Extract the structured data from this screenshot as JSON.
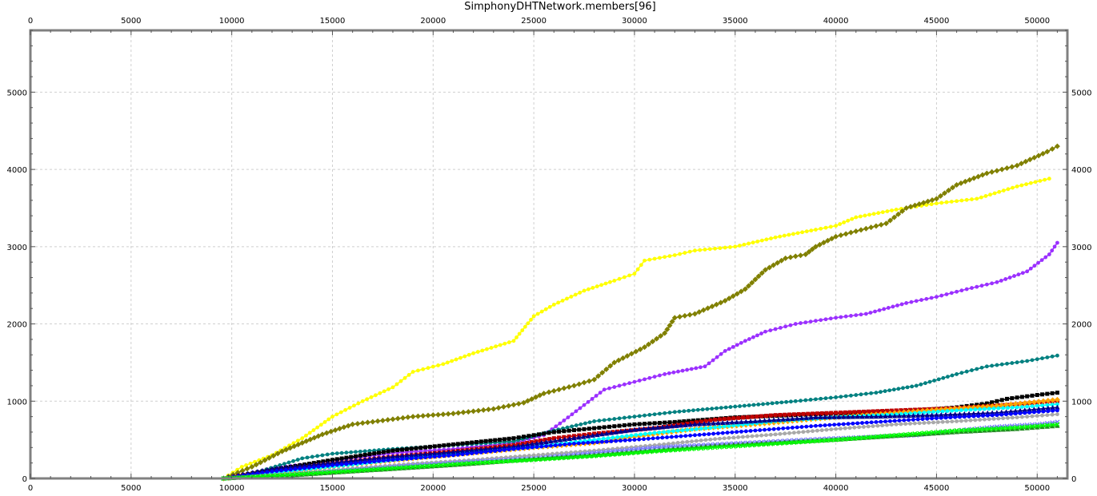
{
  "chart_data": {
    "type": "line",
    "title": "SimphonyDHTNetwork.members[96]",
    "xlabel": "",
    "ylabel": "",
    "xlim": [
      0,
      51500
    ],
    "ylim": [
      0,
      5800
    ],
    "xticks": [
      0,
      5000,
      10000,
      15000,
      20000,
      25000,
      30000,
      35000,
      40000,
      45000,
      50000
    ],
    "yticks": [
      0,
      1000,
      2000,
      3000,
      4000,
      5000
    ],
    "grid": true,
    "legend": "none",
    "series": [
      {
        "color": "#ffff00",
        "marker": "circle",
        "points": [
          [
            9600,
            0
          ],
          [
            10500,
            150
          ],
          [
            12000,
            300
          ],
          [
            13500,
            520
          ],
          [
            15000,
            800
          ],
          [
            16500,
            1000
          ],
          [
            18000,
            1180
          ],
          [
            19000,
            1380
          ],
          [
            20500,
            1480
          ],
          [
            22000,
            1620
          ],
          [
            24000,
            1780
          ],
          [
            25000,
            2100
          ],
          [
            26000,
            2250
          ],
          [
            27500,
            2430
          ],
          [
            29000,
            2560
          ],
          [
            30000,
            2650
          ],
          [
            30500,
            2820
          ],
          [
            32000,
            2890
          ],
          [
            33000,
            2950
          ],
          [
            35000,
            3000
          ],
          [
            37000,
            3120
          ],
          [
            39000,
            3220
          ],
          [
            40000,
            3270
          ],
          [
            41000,
            3380
          ],
          [
            43000,
            3480
          ],
          [
            45000,
            3560
          ],
          [
            47000,
            3620
          ],
          [
            49000,
            3780
          ],
          [
            50600,
            3880
          ]
        ]
      },
      {
        "color": "#808000",
        "marker": "diamond",
        "points": [
          [
            9600,
            0
          ],
          [
            11000,
            150
          ],
          [
            12500,
            350
          ],
          [
            13500,
            460
          ],
          [
            14500,
            570
          ],
          [
            16000,
            700
          ],
          [
            17500,
            750
          ],
          [
            19000,
            800
          ],
          [
            21000,
            840
          ],
          [
            23000,
            900
          ],
          [
            24500,
            980
          ],
          [
            25500,
            1100
          ],
          [
            27000,
            1200
          ],
          [
            28000,
            1280
          ],
          [
            29000,
            1500
          ],
          [
            30500,
            1700
          ],
          [
            31500,
            1880
          ],
          [
            32000,
            2080
          ],
          [
            33000,
            2130
          ],
          [
            34500,
            2300
          ],
          [
            35500,
            2450
          ],
          [
            36500,
            2700
          ],
          [
            37500,
            2850
          ],
          [
            38500,
            2900
          ],
          [
            39000,
            3000
          ],
          [
            40000,
            3130
          ],
          [
            41000,
            3200
          ],
          [
            42500,
            3300
          ],
          [
            43500,
            3500
          ],
          [
            45000,
            3620
          ],
          [
            46000,
            3800
          ],
          [
            47500,
            3950
          ],
          [
            49000,
            4050
          ],
          [
            50500,
            4230
          ],
          [
            51000,
            4300
          ]
        ]
      },
      {
        "color": "#9b30ff",
        "marker": "circle",
        "points": [
          [
            9600,
            0
          ],
          [
            12000,
            130
          ],
          [
            15000,
            230
          ],
          [
            18000,
            330
          ],
          [
            21000,
            380
          ],
          [
            24000,
            460
          ],
          [
            25500,
            560
          ],
          [
            26500,
            750
          ],
          [
            27500,
            950
          ],
          [
            28500,
            1150
          ],
          [
            30000,
            1250
          ],
          [
            31500,
            1350
          ],
          [
            33500,
            1450
          ],
          [
            34500,
            1650
          ],
          [
            35500,
            1780
          ],
          [
            36500,
            1900
          ],
          [
            38000,
            2000
          ],
          [
            40000,
            2080
          ],
          [
            41500,
            2130
          ],
          [
            43500,
            2270
          ],
          [
            45000,
            2350
          ],
          [
            46500,
            2450
          ],
          [
            48000,
            2540
          ],
          [
            49500,
            2680
          ],
          [
            50600,
            2900
          ],
          [
            51000,
            3050
          ]
        ]
      },
      {
        "color": "#008080",
        "marker": "circle",
        "points": [
          [
            9600,
            0
          ],
          [
            11500,
            100
          ],
          [
            13500,
            260
          ],
          [
            15000,
            320
          ],
          [
            18000,
            380
          ],
          [
            21000,
            430
          ],
          [
            24000,
            480
          ],
          [
            26000,
            620
          ],
          [
            28000,
            740
          ],
          [
            30000,
            800
          ],
          [
            32000,
            860
          ],
          [
            35000,
            930
          ],
          [
            38000,
            1000
          ],
          [
            40000,
            1050
          ],
          [
            42000,
            1110
          ],
          [
            44000,
            1200
          ],
          [
            46000,
            1350
          ],
          [
            47500,
            1450
          ],
          [
            49500,
            1520
          ],
          [
            51000,
            1590
          ]
        ]
      },
      {
        "color": "#000000",
        "marker": "square",
        "points": [
          [
            9600,
            0
          ],
          [
            12000,
            110
          ],
          [
            15000,
            240
          ],
          [
            18000,
            360
          ],
          [
            21000,
            440
          ],
          [
            24000,
            520
          ],
          [
            26000,
            600
          ],
          [
            28000,
            650
          ],
          [
            30000,
            700
          ],
          [
            32000,
            730
          ],
          [
            35000,
            790
          ],
          [
            38000,
            820
          ],
          [
            40000,
            840
          ],
          [
            42000,
            860
          ],
          [
            44000,
            880
          ],
          [
            46000,
            920
          ],
          [
            47500,
            970
          ],
          [
            48500,
            1030
          ],
          [
            50000,
            1080
          ],
          [
            51000,
            1110
          ]
        ]
      },
      {
        "color": "#c00000",
        "marker": "square",
        "points": [
          [
            9600,
            0
          ],
          [
            12000,
            100
          ],
          [
            15000,
            190
          ],
          [
            18000,
            280
          ],
          [
            21000,
            350
          ],
          [
            24000,
            430
          ],
          [
            26000,
            520
          ],
          [
            28000,
            580
          ],
          [
            31000,
            650
          ],
          [
            34000,
            760
          ],
          [
            37000,
            820
          ],
          [
            40000,
            850
          ],
          [
            43000,
            880
          ],
          [
            46000,
            910
          ],
          [
            49000,
            960
          ],
          [
            51000,
            1000
          ]
        ]
      },
      {
        "color": "#ffa500",
        "marker": "diamond",
        "points": [
          [
            9600,
            0
          ],
          [
            13000,
            90
          ],
          [
            16000,
            180
          ],
          [
            19000,
            260
          ],
          [
            22000,
            330
          ],
          [
            25000,
            400
          ],
          [
            28000,
            460
          ],
          [
            30000,
            540
          ],
          [
            33000,
            640
          ],
          [
            36000,
            700
          ],
          [
            39000,
            770
          ],
          [
            42000,
            830
          ],
          [
            45000,
            890
          ],
          [
            48000,
            940
          ],
          [
            51000,
            1020
          ]
        ]
      },
      {
        "color": "#00ffff",
        "marker": "circle",
        "points": [
          [
            9600,
            0
          ],
          [
            13000,
            100
          ],
          [
            16000,
            180
          ],
          [
            19000,
            270
          ],
          [
            22000,
            350
          ],
          [
            25000,
            410
          ],
          [
            28000,
            500
          ],
          [
            31000,
            590
          ],
          [
            34000,
            660
          ],
          [
            37000,
            740
          ],
          [
            40000,
            790
          ],
          [
            43000,
            830
          ],
          [
            46000,
            880
          ],
          [
            49000,
            920
          ],
          [
            51000,
            960
          ]
        ]
      },
      {
        "color": "#00008b",
        "marker": "triangle",
        "points": [
          [
            9600,
            0
          ],
          [
            12000,
            120
          ],
          [
            15000,
            200
          ],
          [
            18000,
            280
          ],
          [
            21000,
            340
          ],
          [
            24000,
            410
          ],
          [
            27000,
            520
          ],
          [
            30000,
            630
          ],
          [
            33000,
            700
          ],
          [
            36000,
            740
          ],
          [
            39000,
            790
          ],
          [
            42000,
            800
          ],
          [
            45000,
            820
          ],
          [
            48000,
            850
          ],
          [
            51000,
            920
          ]
        ]
      },
      {
        "color": "#0000ff",
        "marker": "circle",
        "points": [
          [
            9600,
            0
          ],
          [
            12000,
            90
          ],
          [
            15000,
            170
          ],
          [
            18000,
            240
          ],
          [
            21000,
            300
          ],
          [
            24000,
            380
          ],
          [
            27000,
            450
          ],
          [
            30000,
            500
          ],
          [
            33000,
            560
          ],
          [
            36000,
            620
          ],
          [
            39000,
            680
          ],
          [
            42000,
            730
          ],
          [
            45000,
            780
          ],
          [
            48000,
            820
          ],
          [
            51000,
            880
          ]
        ]
      },
      {
        "color": "#a9a9a9",
        "marker": "circle",
        "points": [
          [
            9600,
            0
          ],
          [
            13000,
            60
          ],
          [
            16000,
            130
          ],
          [
            19000,
            190
          ],
          [
            22000,
            240
          ],
          [
            25000,
            300
          ],
          [
            28000,
            360
          ],
          [
            31000,
            430
          ],
          [
            34000,
            510
          ],
          [
            37000,
            570
          ],
          [
            40000,
            640
          ],
          [
            43000,
            700
          ],
          [
            46000,
            740
          ],
          [
            49000,
            790
          ],
          [
            51000,
            830
          ]
        ]
      },
      {
        "color": "#7b7bff",
        "marker": "x",
        "points": [
          [
            9600,
            0
          ],
          [
            13000,
            50
          ],
          [
            16000,
            110
          ],
          [
            19000,
            170
          ],
          [
            22000,
            220
          ],
          [
            25000,
            260
          ],
          [
            28000,
            330
          ],
          [
            31000,
            400
          ],
          [
            34000,
            440
          ],
          [
            37000,
            480
          ],
          [
            40000,
            520
          ],
          [
            42000,
            540
          ],
          [
            44000,
            560
          ],
          [
            46000,
            620
          ],
          [
            48000,
            670
          ],
          [
            50000,
            700
          ],
          [
            51000,
            730
          ]
        ]
      },
      {
        "color": "#228b22",
        "marker": "triangle",
        "points": [
          [
            9600,
            0
          ],
          [
            13000,
            40
          ],
          [
            16000,
            90
          ],
          [
            19000,
            140
          ],
          [
            22000,
            190
          ],
          [
            25000,
            250
          ],
          [
            28000,
            300
          ],
          [
            31000,
            360
          ],
          [
            34000,
            420
          ],
          [
            37000,
            460
          ],
          [
            40000,
            500
          ],
          [
            43000,
            550
          ],
          [
            46000,
            600
          ],
          [
            49000,
            640
          ],
          [
            51000,
            680
          ]
        ]
      },
      {
        "color": "#00ff00",
        "marker": "x",
        "points": [
          [
            9600,
            0
          ],
          [
            13000,
            50
          ],
          [
            16000,
            100
          ],
          [
            19000,
            150
          ],
          [
            22000,
            200
          ],
          [
            25000,
            240
          ],
          [
            28000,
            290
          ],
          [
            31000,
            350
          ],
          [
            34000,
            400
          ],
          [
            37000,
            450
          ],
          [
            40000,
            500
          ],
          [
            43000,
            560
          ],
          [
            46000,
            620
          ],
          [
            49000,
            660
          ],
          [
            51000,
            700
          ]
        ]
      }
    ]
  }
}
